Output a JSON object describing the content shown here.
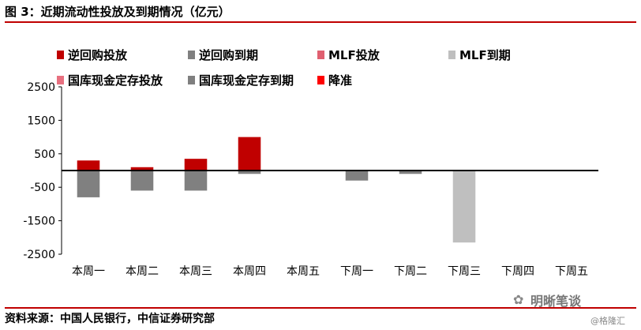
{
  "header": {
    "title": "图 3：近期流动性投放及到期情况（亿元）"
  },
  "footer": {
    "source": "资料来源：中国人民银行，中信证券研究部",
    "brand": "明晰笔谈",
    "watermark": "@格隆汇"
  },
  "chart_data": {
    "type": "bar",
    "title": "图 3：近期流动性投放及到期情况（亿元）",
    "categories": [
      "本周一",
      "本周二",
      "本周三",
      "本周四",
      "本周五",
      "下周一",
      "下周二",
      "下周三",
      "下周四",
      "下周五"
    ],
    "ylim": [
      -2500,
      2500
    ],
    "yticks": [
      2500,
      1500,
      500,
      -500,
      -1500,
      -2500
    ],
    "ytick_labels": [
      "2500",
      "1500",
      "500",
      "-500",
      "-1500",
      "-2500"
    ],
    "grid": false,
    "legend_position": "top",
    "stacked": true,
    "series": [
      {
        "name": "逆回购投放",
        "color": "#c00000",
        "values": [
          300,
          100,
          350,
          1000,
          0,
          0,
          0,
          0,
          0,
          0
        ]
      },
      {
        "name": "逆回购到期",
        "color": "#808080",
        "values": [
          -800,
          -600,
          -600,
          -100,
          0,
          -300,
          -100,
          0,
          0,
          0
        ]
      },
      {
        "name": "MLF投放",
        "color": "#e06070",
        "values": [
          0,
          0,
          0,
          0,
          0,
          0,
          0,
          0,
          0,
          0
        ]
      },
      {
        "name": "MLF到期",
        "color": "#bfbfbf",
        "values": [
          0,
          0,
          0,
          0,
          0,
          0,
          0,
          -2150,
          0,
          0
        ]
      },
      {
        "name": "国库现金定存投放",
        "color": "#e87080",
        "values": [
          0,
          0,
          0,
          0,
          0,
          0,
          0,
          0,
          0,
          0
        ]
      },
      {
        "name": "国库现金定存到期",
        "color": "#7f7f7f",
        "values": [
          0,
          0,
          0,
          0,
          0,
          0,
          0,
          0,
          0,
          0
        ]
      },
      {
        "name": "降准",
        "color": "#ff0000",
        "values": [
          0,
          0,
          0,
          0,
          0,
          0,
          0,
          0,
          0,
          0
        ]
      }
    ]
  }
}
